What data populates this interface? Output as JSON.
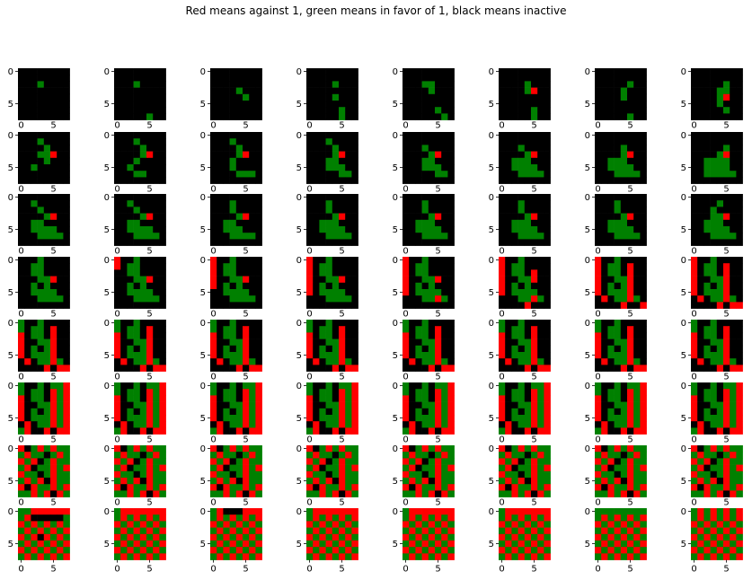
{
  "title": "Red means against 1, green means in favor of 1, black means inactive",
  "chart_data": {
    "type": "heatmap",
    "title": "Red means against 1, green means in favor of 1, black means inactive",
    "rows": 8,
    "cols": 8,
    "grid_size": 8,
    "legend": {
      "-1": "red",
      "1": "green",
      "0": "black"
    },
    "colors": {
      "-1": "#ff0000",
      "0": "#000000",
      "1": "#008000"
    },
    "yticks": [
      "0",
      "5"
    ],
    "xticks": [
      "0",
      "5"
    ],
    "panels": [
      [
        "00000000",
        "00000000",
        "00010000",
        "00000000",
        "00000000",
        "00000000",
        "00000000",
        "00000000"
      ],
      [
        "00000000",
        "00000000",
        "00010000",
        "00000000",
        "00000000",
        "00000000",
        "00000000",
        "00000100"
      ],
      [
        "00000000",
        "00000000",
        "00000000",
        "00001000",
        "00000100",
        "00000000",
        "00000000",
        "00000000"
      ],
      [
        "00000000",
        "00000000",
        "00001000",
        "00000000",
        "00001000",
        "00000000",
        "00000100",
        "00000100"
      ],
      [
        "00000000",
        "00000000",
        "00011000",
        "00001000",
        "00000000",
        "00000000",
        "00000100",
        "00000010"
      ],
      [
        "00000000",
        "00000000",
        "00001000",
        "00001-00",
        "00000000",
        "00000000",
        "00000100",
        "00000100"
      ],
      [
        "00000000",
        "00000000",
        "00000100",
        "00001000",
        "00001000",
        "00000000",
        "00000000",
        "00000100"
      ],
      [
        "00000000",
        "00000000",
        "00000100",
        "00001100",
        "00001-00",
        "00001000",
        "00000100",
        "00000000"
      ],
      [
        "00000000",
        "00010000",
        "00001000",
        "00011-00",
        "00001000",
        "00100000",
        "00000000",
        "00000000"
      ],
      [
        "00000000",
        "00010000",
        "00001000",
        "00001-00",
        "00010000",
        "00100000",
        "00011000",
        "00000000"
      ],
      [
        "00000000",
        "00010000",
        "00001000",
        "00001-00",
        "00010000",
        "00010000",
        "00001110",
        "00000000"
      ],
      [
        "00000000",
        "00010000",
        "00001000",
        "00001-00",
        "00011000",
        "00011100",
        "00000110",
        "00000000"
      ],
      [
        "00000000",
        "00000000",
        "00010000",
        "00001-00",
        "00011000",
        "00011100",
        "00000110",
        "00000000"
      ],
      [
        "00000000",
        "00000000",
        "00010000",
        "00001-00",
        "00111000",
        "00111100",
        "00011110",
        "00000000"
      ],
      [
        "00000000",
        "00000000",
        "00001000",
        "00001-00",
        "00111000",
        "00111100",
        "00011110",
        "00000000"
      ],
      [
        "00000000",
        "00000000",
        "00000100",
        "00001-00",
        "00111100",
        "00111100",
        "00111110",
        "00000000"
      ],
      [
        "00000000",
        "00100000",
        "00010000",
        "00001-00",
        "00110000",
        "00111100",
        "00011110",
        "00000000"
      ],
      [
        "00000000",
        "00100000",
        "00010000",
        "00001-00",
        "00110000",
        "00111100",
        "00011110",
        "00000000"
      ],
      [
        "00000000",
        "00010000",
        "00010000",
        "00001-00",
        "00110000",
        "00111000",
        "00011110",
        "00000000"
      ],
      [
        "00000000",
        "00010000",
        "00010000",
        "00001-00",
        "00111000",
        "00111100",
        "00011110",
        "00000000"
      ],
      [
        "00000000",
        "00010000",
        "00010000",
        "00001-00",
        "00111000",
        "00111100",
        "00011110",
        "00000000"
      ],
      [
        "00000000",
        "00010000",
        "00010000",
        "00001-00",
        "00111000",
        "00111100",
        "00011110",
        "00000000"
      ],
      [
        "00000000",
        "00010000",
        "00010000",
        "00001-00",
        "00111000",
        "00111100",
        "00011110",
        "00000000"
      ],
      [
        "00000000",
        "00001000",
        "00010000",
        "00011-00",
        "00111000",
        "00111100",
        "00011110",
        "00000000"
      ],
      [
        "00010000",
        "00110000",
        "00110000",
        "00011-00",
        "00101000",
        "00111100",
        "00011110",
        "00000000"
      ],
      [
        "-0010000",
        "-0110000",
        "00110000",
        "00011-00",
        "00101000",
        "00111100",
        "00011110",
        "00000000"
      ],
      [
        "-0010000",
        "-0110000",
        "-0110000",
        "-0011-00",
        "-0101000",
        "00111100",
        "00011110",
        "00000000"
      ],
      [
        "-0010000",
        "-0110000",
        "-0110000",
        "-0011-00",
        "-0101000",
        "-0111100",
        "00011110",
        "00000000"
      ],
      [
        "-0010000",
        "-0110000",
        "-0110000",
        "-0011-00",
        "-0101000",
        "-0111100",
        "00011-10",
        "00000000"
      ],
      [
        "-0010000",
        "-0110000",
        "-0110-00",
        "-0011-00",
        "-0101000",
        "-0111100",
        "00011-10",
        "0000-000"
      ],
      [
        "-0010000",
        "-0110-00",
        "-0110-00",
        "-0011-00",
        "-0101-00",
        "-0111-00",
        "0-011-10",
        "0000-00-"
      ],
      [
        "-0010000",
        "-0110-00",
        "-0110-00",
        "-0011-00",
        "-0101-00",
        "-0111-00",
        "0-011-10",
        "0000-0--"
      ],
      [
        "10010000",
        "10110-00",
        "-0110-00",
        "-0011-00",
        "-0101-00",
        "-0111-00",
        "0-011-10",
        "0000-0--"
      ],
      [
        "10010000",
        "10110-00",
        "-0110-00",
        "-0011-00",
        "-0101-00",
        "-0111-00",
        "0-011-10",
        "0000-0--"
      ],
      [
        "10010000",
        "10110-00",
        "-0110-00",
        "-0011-00",
        "-0101-00",
        "-0111-00",
        "0-011-10",
        "0000-0--"
      ],
      [
        "10010000",
        "10110-00",
        "-0110-00",
        "-0011-00",
        "-0101-00",
        "-0111-00",
        "0-011-10",
        "0000-0--"
      ],
      [
        "10010000",
        "10110-00",
        "-0110-00",
        "-0011-00",
        "-0101-00",
        "-0111-00",
        "0-011-10",
        "0000-0--"
      ],
      [
        "10010000",
        "10110-00",
        "-0110-00",
        "-0011-00",
        "-0101-00",
        "-0111-00",
        "0-011-10",
        "0000-0--"
      ],
      [
        "10010000",
        "10110-00",
        "-0110-00",
        "-0011-00",
        "-0101-00",
        "-0111-00",
        "0-011-10",
        "0000-0--"
      ],
      [
        "10010000",
        "10110-00",
        "-0110-00",
        "-0011-00",
        "-0101-00",
        "-0111-00",
        "0-011-10",
        "0000-0--"
      ],
      [
        "1001011-",
        "10110-1-",
        "-0110-1-",
        "-0011-1-",
        "-0101-1-",
        "-0111-1-",
        "0-011-1-",
        "1-00-0--"
      ],
      [
        "1001011-",
        "10110-1-",
        "-0110-1-",
        "-0011-1-",
        "-0101-1-",
        "-0111-1-",
        "0-011-1-",
        "1-00-0--"
      ],
      [
        "1001011-",
        "10110-1-",
        "-0110-1-",
        "-0011-1-",
        "-0101-1-",
        "-0111-1-",
        "0-011-1-",
        "1-00-0--"
      ],
      [
        "1001011-",
        "10110-1-",
        "-0110-1-",
        "-0011-1-",
        "-0101-1-",
        "-0111-1-",
        "0-011-1-",
        "1-00-0--"
      ],
      [
        "1001011-",
        "10110-1-",
        "-0110-1-",
        "-0011-1-",
        "-0101-1-",
        "-0111-1-",
        "0-011-1-",
        "1-00-0--"
      ],
      [
        "1001011-",
        "10110-1-",
        "-0110-1-",
        "-0011-1-",
        "-0101-1-",
        "-0111-1-",
        "0-011-1-",
        "1-00-0--"
      ],
      [
        "1001011-",
        "10110-1-",
        "-0110-1-",
        "-0011-1-",
        "-0101-1-",
        "-0111-1-",
        "0-011-1-",
        "1-00-0--"
      ],
      [
        "1001011-",
        "10110-1-",
        "-0110-1-",
        "-0011-1-",
        "-0101-1-",
        "-0111-1-",
        "0-011-1-",
        "1-00-0--"
      ],
      [
        "-01-1-11",
        "1-1101-1",
        "-1-01-11",
        "1-011-1-",
        "-1101-11",
        "1-1-0-11",
        "-0-11-1-",
        "11-1-0-1"
      ],
      [
        "-01-1-11",
        "1-1101-1",
        "-1-01-11",
        "1-011-1-",
        "-1101-11",
        "1-1-0-11",
        "-0-11-1-",
        "11-1-0-1"
      ],
      [
        "-01-1-11",
        "1-1101-1",
        "-1-01-11",
        "1-011-1-",
        "-1101-11",
        "1-1-0-11",
        "-0-11-1-",
        "11-1-0-1"
      ],
      [
        "-01-1-11",
        "1-1101-1",
        "-1-01-11",
        "1-011-1-",
        "-1101-11",
        "1-1-0-11",
        "-0-11-1-",
        "11-1-0-1"
      ],
      [
        "-01-1-11",
        "1-1101-1",
        "-1-01-11",
        "1-011-1-",
        "-1101-11",
        "1-1-0-11",
        "-0-11-1-",
        "11-1-0-1"
      ],
      [
        "-01-1-11",
        "1-1101-1",
        "-1-01-11",
        "1-011-1-",
        "-1101-11",
        "1-1-0-11",
        "-0-11-1-",
        "11-1-0-1"
      ],
      [
        "-01-1-11",
        "1-1101-1",
        "-1-01-11",
        "1-011-1-",
        "-1101-11",
        "1-1-0-11",
        "-0-11-1-",
        "11-1-0-1"
      ],
      [
        "-01-1-11",
        "1-1101-1",
        "-1-01-11",
        "1-011-1-",
        "-1101-11",
        "1-1-0-11",
        "-0-11-1-",
        "11-1-0-1"
      ],
      [
        "11------",
        "1-000001",
        "-1-1-1-1",
        "1-1-1-1-",
        "-1-0-1-1",
        "1-1-1-1-",
        "-1-1-1-1",
        "1-1-1-1-"
      ],
      [
        "1-------",
        "1-1-1-1-",
        "-1-1-1-1",
        "1-1-1-1-",
        "-1-1-1-1",
        "1-1-1-1-",
        "-1-1-1-1",
        "1-1-1-1-"
      ],
      [
        "1-000---",
        "1-1-1-1-",
        "-1-1-1-1",
        "1-1-1-1-",
        "-1-1-1-1",
        "1-1-1-1-",
        "-1-1-1-1",
        "1-1-1-1-"
      ],
      [
        "1-------",
        "1-1-1-1-",
        "-1-1-1-1",
        "1-1-1-1-",
        "-1-1-1-1",
        "1-1-1-1-",
        "-1-1-1-1",
        "1-1-1-1-"
      ],
      [
        "1-------",
        "1-1-1-1-",
        "-1-1-1-1",
        "1-1-1-1-",
        "-1-1-1-1",
        "1-1-1-1-",
        "-1-1-1-1",
        "1-1-1-1-"
      ],
      [
        "1-------",
        "1-1-1-1-",
        "-1-1-1-1",
        "1-1-1-1-",
        "-1-1-1-1",
        "1-1-1-1-",
        "-1-1-1-1",
        "1-1-1-1-"
      ],
      [
        "11111111",
        "1-1-1-1-",
        "-1-1-1-1",
        "1-1-1-1-",
        "-1-1-1-1",
        "1-1-1-1-",
        "-1-1-1-1",
        "1-1-1-1-"
      ],
      [
        "1-1-1-1-",
        "1-1-1-1-",
        "-1-1-1-1",
        "1-1-1-1-",
        "-1-1-1-1",
        "1-1-1-1-",
        "-1-1-1-1",
        "1-1-1-1-"
      ]
    ]
  }
}
